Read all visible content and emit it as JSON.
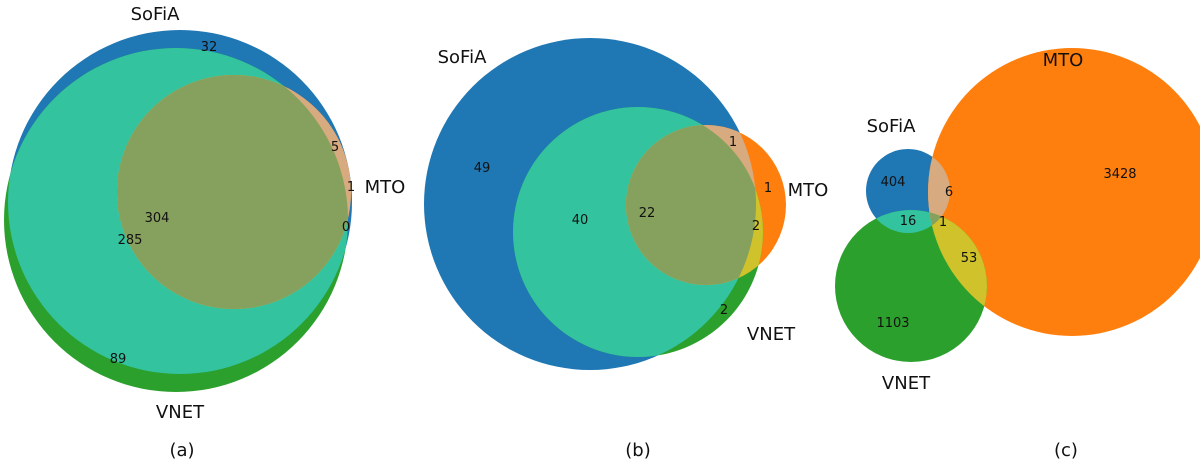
{
  "colors": {
    "sofia": "#1f77b4",
    "mto": "#ff7f0e",
    "vnet": "#2ca02c",
    "sofia_vnet": "#33c39f",
    "sofia_mto": "#d7aa7f",
    "mto_vnet": "#cfc22a",
    "all_three": "#86a05e"
  },
  "panels": [
    {
      "caption": "(a)",
      "set_labels": {
        "sofia": "SoFiA",
        "mto": "MTO",
        "vnet": "VNET"
      },
      "regions": {
        "sofia_only": "32",
        "sofia_mto": "5",
        "mto_only": "1",
        "mto_vnet": "0",
        "all_three": "304",
        "sofia_vnet": "285",
        "vnet_only": "89"
      }
    },
    {
      "caption": "(b)",
      "set_labels": {
        "sofia": "SoFiA",
        "mto": "MTO",
        "vnet": "VNET"
      },
      "regions": {
        "sofia_only": "49",
        "sofia_vnet": "40",
        "all_three": "22",
        "sofia_mto": "1",
        "mto_only": "1",
        "mto_vnet": "2",
        "vnet_only": "2"
      }
    },
    {
      "caption": "(c)",
      "set_labels": {
        "sofia": "SoFiA",
        "mto": "MTO",
        "vnet": "VNET"
      },
      "regions": {
        "sofia_only": "404",
        "sofia_mto": "6",
        "mto_only": "3428",
        "sofia_vnet": "16",
        "all_three": "1",
        "mto_vnet": "53",
        "vnet_only": "1103"
      }
    }
  ]
}
